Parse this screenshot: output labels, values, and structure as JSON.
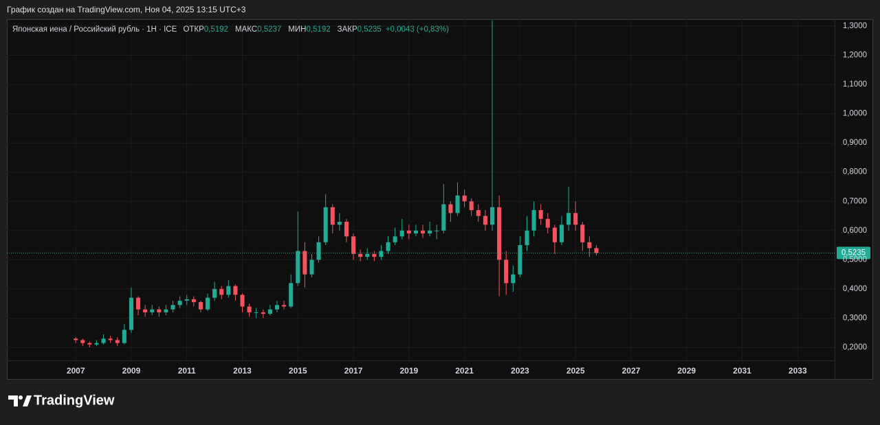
{
  "caption": "График создан на TradingView.com, Ноя 04, 2025 13:15 UTC+3",
  "branding": "TradingView",
  "chart_data": {
    "type": "candlestick",
    "title": "Японская иена / Российский рубль · 1Н · ICE",
    "legend_values": [
      {
        "name": "ОТКР",
        "value": 0.5192,
        "label": "0,5192"
      },
      {
        "name": "МАКС",
        "value": 0.5237,
        "label": "0,5237"
      },
      {
        "name": "МИН",
        "value": 0.5192,
        "label": "0,5192"
      },
      {
        "name": "ЗАКР",
        "value": 0.5235,
        "label": "0,5235"
      }
    ],
    "change": "+0,0043 (+0,83%)",
    "up_color": "#22ab94",
    "down_color": "#f7525f",
    "grid": true,
    "last_price": {
      "value": 0.5235,
      "label": "0,5235"
    },
    "xlim": [
      2004.52,
      2034.33
    ],
    "xticks": [
      2007,
      2009,
      2011,
      2013,
      2015,
      2017,
      2019,
      2021,
      2023,
      2025,
      2027,
      2029,
      2031,
      2033
    ],
    "ylim": [
      0.1553,
      1.3235
    ],
    "yticks": [
      {
        "value": 0.2,
        "label": "0,2000"
      },
      {
        "value": 0.3,
        "label": "0,3000"
      },
      {
        "value": 0.4,
        "label": "0,4000"
      },
      {
        "value": 0.5,
        "label": "0,5000"
      },
      {
        "value": 0.6,
        "label": "0,6000"
      },
      {
        "value": 0.7,
        "label": "0,7000"
      },
      {
        "value": 0.8,
        "label": "0,8000"
      },
      {
        "value": 0.9,
        "label": "0,9000"
      },
      {
        "value": 1.0,
        "label": "1,0000"
      },
      {
        "value": 1.1,
        "label": "1,1000"
      },
      {
        "value": 1.2,
        "label": "1,2000"
      },
      {
        "value": 1.3,
        "label": "1,3000"
      }
    ],
    "x": [
      2007,
      2007.25,
      2007.5,
      2007.75,
      2008,
      2008.25,
      2008.5,
      2008.75,
      2009,
      2009.25,
      2009.5,
      2009.75,
      2010,
      2010.25,
      2010.5,
      2010.75,
      2011,
      2011.25,
      2011.5,
      2011.75,
      2012,
      2012.25,
      2012.5,
      2012.75,
      2013,
      2013.25,
      2013.5,
      2013.75,
      2014,
      2014.25,
      2014.5,
      2014.75,
      2015,
      2015.25,
      2015.5,
      2015.75,
      2016,
      2016.25,
      2016.5,
      2016.75,
      2017,
      2017.25,
      2017.5,
      2017.75,
      2018,
      2018.25,
      2018.5,
      2018.75,
      2019,
      2019.25,
      2019.5,
      2019.75,
      2020,
      2020.25,
      2020.5,
      2020.75,
      2021,
      2021.25,
      2021.5,
      2021.75,
      2022,
      2022.25,
      2022.5,
      2022.75,
      2023,
      2023.25,
      2023.5,
      2023.75,
      2024,
      2024.25,
      2024.5,
      2024.75,
      2025,
      2025.25,
      2025.5,
      2025.75
    ],
    "open": [
      0.23,
      0.225,
      0.215,
      0.21,
      0.215,
      0.23,
      0.225,
      0.215,
      0.26,
      0.37,
      0.33,
      0.32,
      0.33,
      0.32,
      0.33,
      0.345,
      0.36,
      0.365,
      0.355,
      0.33,
      0.37,
      0.4,
      0.38,
      0.41,
      0.38,
      0.34,
      0.32,
      0.32,
      0.315,
      0.33,
      0.345,
      0.34,
      0.42,
      0.53,
      0.45,
      0.5,
      0.56,
      0.68,
      0.62,
      0.63,
      0.58,
      0.52,
      0.51,
      0.52,
      0.51,
      0.53,
      0.56,
      0.58,
      0.6,
      0.59,
      0.6,
      0.59,
      0.6,
      0.6,
      0.69,
      0.66,
      0.72,
      0.7,
      0.67,
      0.65,
      0.62,
      0.68,
      0.5,
      0.42,
      0.45,
      0.55,
      0.6,
      0.67,
      0.64,
      0.61,
      0.56,
      0.62,
      0.66,
      0.62,
      0.56,
      0.54
    ],
    "high": [
      0.235,
      0.23,
      0.22,
      0.225,
      0.245,
      0.24,
      0.235,
      0.28,
      0.405,
      0.375,
      0.345,
      0.345,
      0.34,
      0.345,
      0.36,
      0.375,
      0.38,
      0.375,
      0.36,
      0.385,
      0.425,
      0.41,
      0.43,
      0.415,
      0.385,
      0.35,
      0.335,
      0.33,
      0.345,
      0.36,
      0.36,
      0.45,
      0.665,
      0.56,
      0.52,
      0.58,
      0.725,
      0.69,
      0.66,
      0.64,
      0.59,
      0.535,
      0.54,
      0.53,
      0.55,
      0.58,
      0.61,
      0.64,
      0.62,
      0.62,
      0.62,
      0.63,
      0.62,
      0.76,
      0.7,
      0.765,
      0.74,
      0.71,
      0.69,
      0.67,
      1.32,
      0.72,
      0.53,
      0.48,
      0.58,
      0.65,
      0.7,
      0.69,
      0.66,
      0.62,
      0.65,
      0.75,
      0.7,
      0.63,
      0.58,
      0.55
    ],
    "low": [
      0.215,
      0.205,
      0.2,
      0.205,
      0.21,
      0.215,
      0.205,
      0.21,
      0.25,
      0.31,
      0.305,
      0.31,
      0.305,
      0.31,
      0.32,
      0.335,
      0.345,
      0.34,
      0.32,
      0.325,
      0.36,
      0.365,
      0.37,
      0.36,
      0.32,
      0.305,
      0.3,
      0.3,
      0.31,
      0.32,
      0.33,
      0.335,
      0.41,
      0.405,
      0.44,
      0.49,
      0.55,
      0.59,
      0.6,
      0.56,
      0.5,
      0.495,
      0.5,
      0.495,
      0.5,
      0.52,
      0.55,
      0.57,
      0.57,
      0.58,
      0.575,
      0.58,
      0.57,
      0.59,
      0.63,
      0.65,
      0.68,
      0.65,
      0.63,
      0.6,
      0.6,
      0.375,
      0.38,
      0.39,
      0.44,
      0.53,
      0.58,
      0.62,
      0.59,
      0.52,
      0.55,
      0.6,
      0.6,
      0.53,
      0.51,
      0.515
    ],
    "close": [
      0.225,
      0.215,
      0.21,
      0.215,
      0.23,
      0.225,
      0.215,
      0.26,
      0.37,
      0.33,
      0.32,
      0.33,
      0.32,
      0.33,
      0.345,
      0.36,
      0.365,
      0.355,
      0.33,
      0.37,
      0.4,
      0.38,
      0.41,
      0.38,
      0.34,
      0.32,
      0.32,
      0.315,
      0.33,
      0.345,
      0.34,
      0.42,
      0.53,
      0.45,
      0.5,
      0.56,
      0.68,
      0.62,
      0.63,
      0.58,
      0.52,
      0.51,
      0.52,
      0.51,
      0.53,
      0.56,
      0.58,
      0.6,
      0.59,
      0.6,
      0.59,
      0.6,
      0.6,
      0.69,
      0.66,
      0.72,
      0.7,
      0.67,
      0.65,
      0.62,
      0.68,
      0.5,
      0.42,
      0.45,
      0.55,
      0.6,
      0.67,
      0.64,
      0.61,
      0.56,
      0.62,
      0.66,
      0.62,
      0.56,
      0.54,
      0.5235
    ]
  }
}
